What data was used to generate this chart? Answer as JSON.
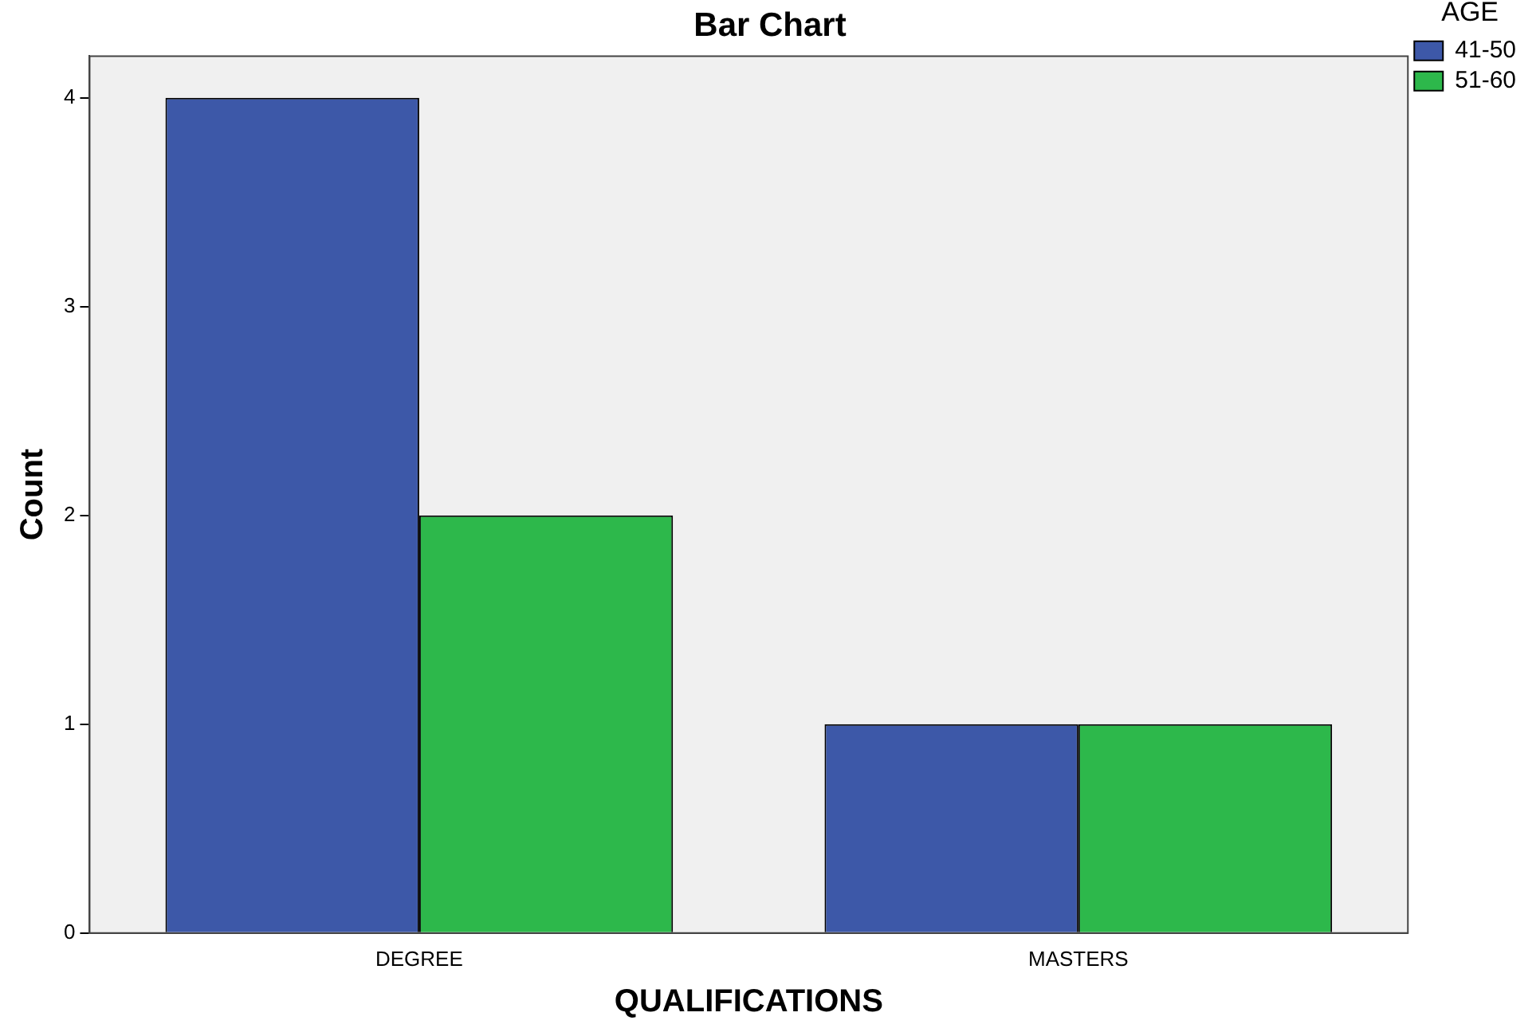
{
  "chart_data": {
    "type": "bar",
    "title": "Bar Chart",
    "xlabel": "QUALIFICATIONS",
    "ylabel": "Count",
    "legend_title": "AGE",
    "categories": [
      "DEGREE",
      "MASTERS"
    ],
    "series": [
      {
        "name": "41-50",
        "color": "#3d58a8",
        "values": [
          4,
          1
        ]
      },
      {
        "name": "51-60",
        "color": "#2db84b",
        "values": [
          2,
          1
        ]
      }
    ],
    "ylim": [
      0,
      4.2
    ],
    "yticks": [
      0,
      1,
      2,
      3,
      4
    ],
    "grid": false,
    "legend": "top right"
  }
}
